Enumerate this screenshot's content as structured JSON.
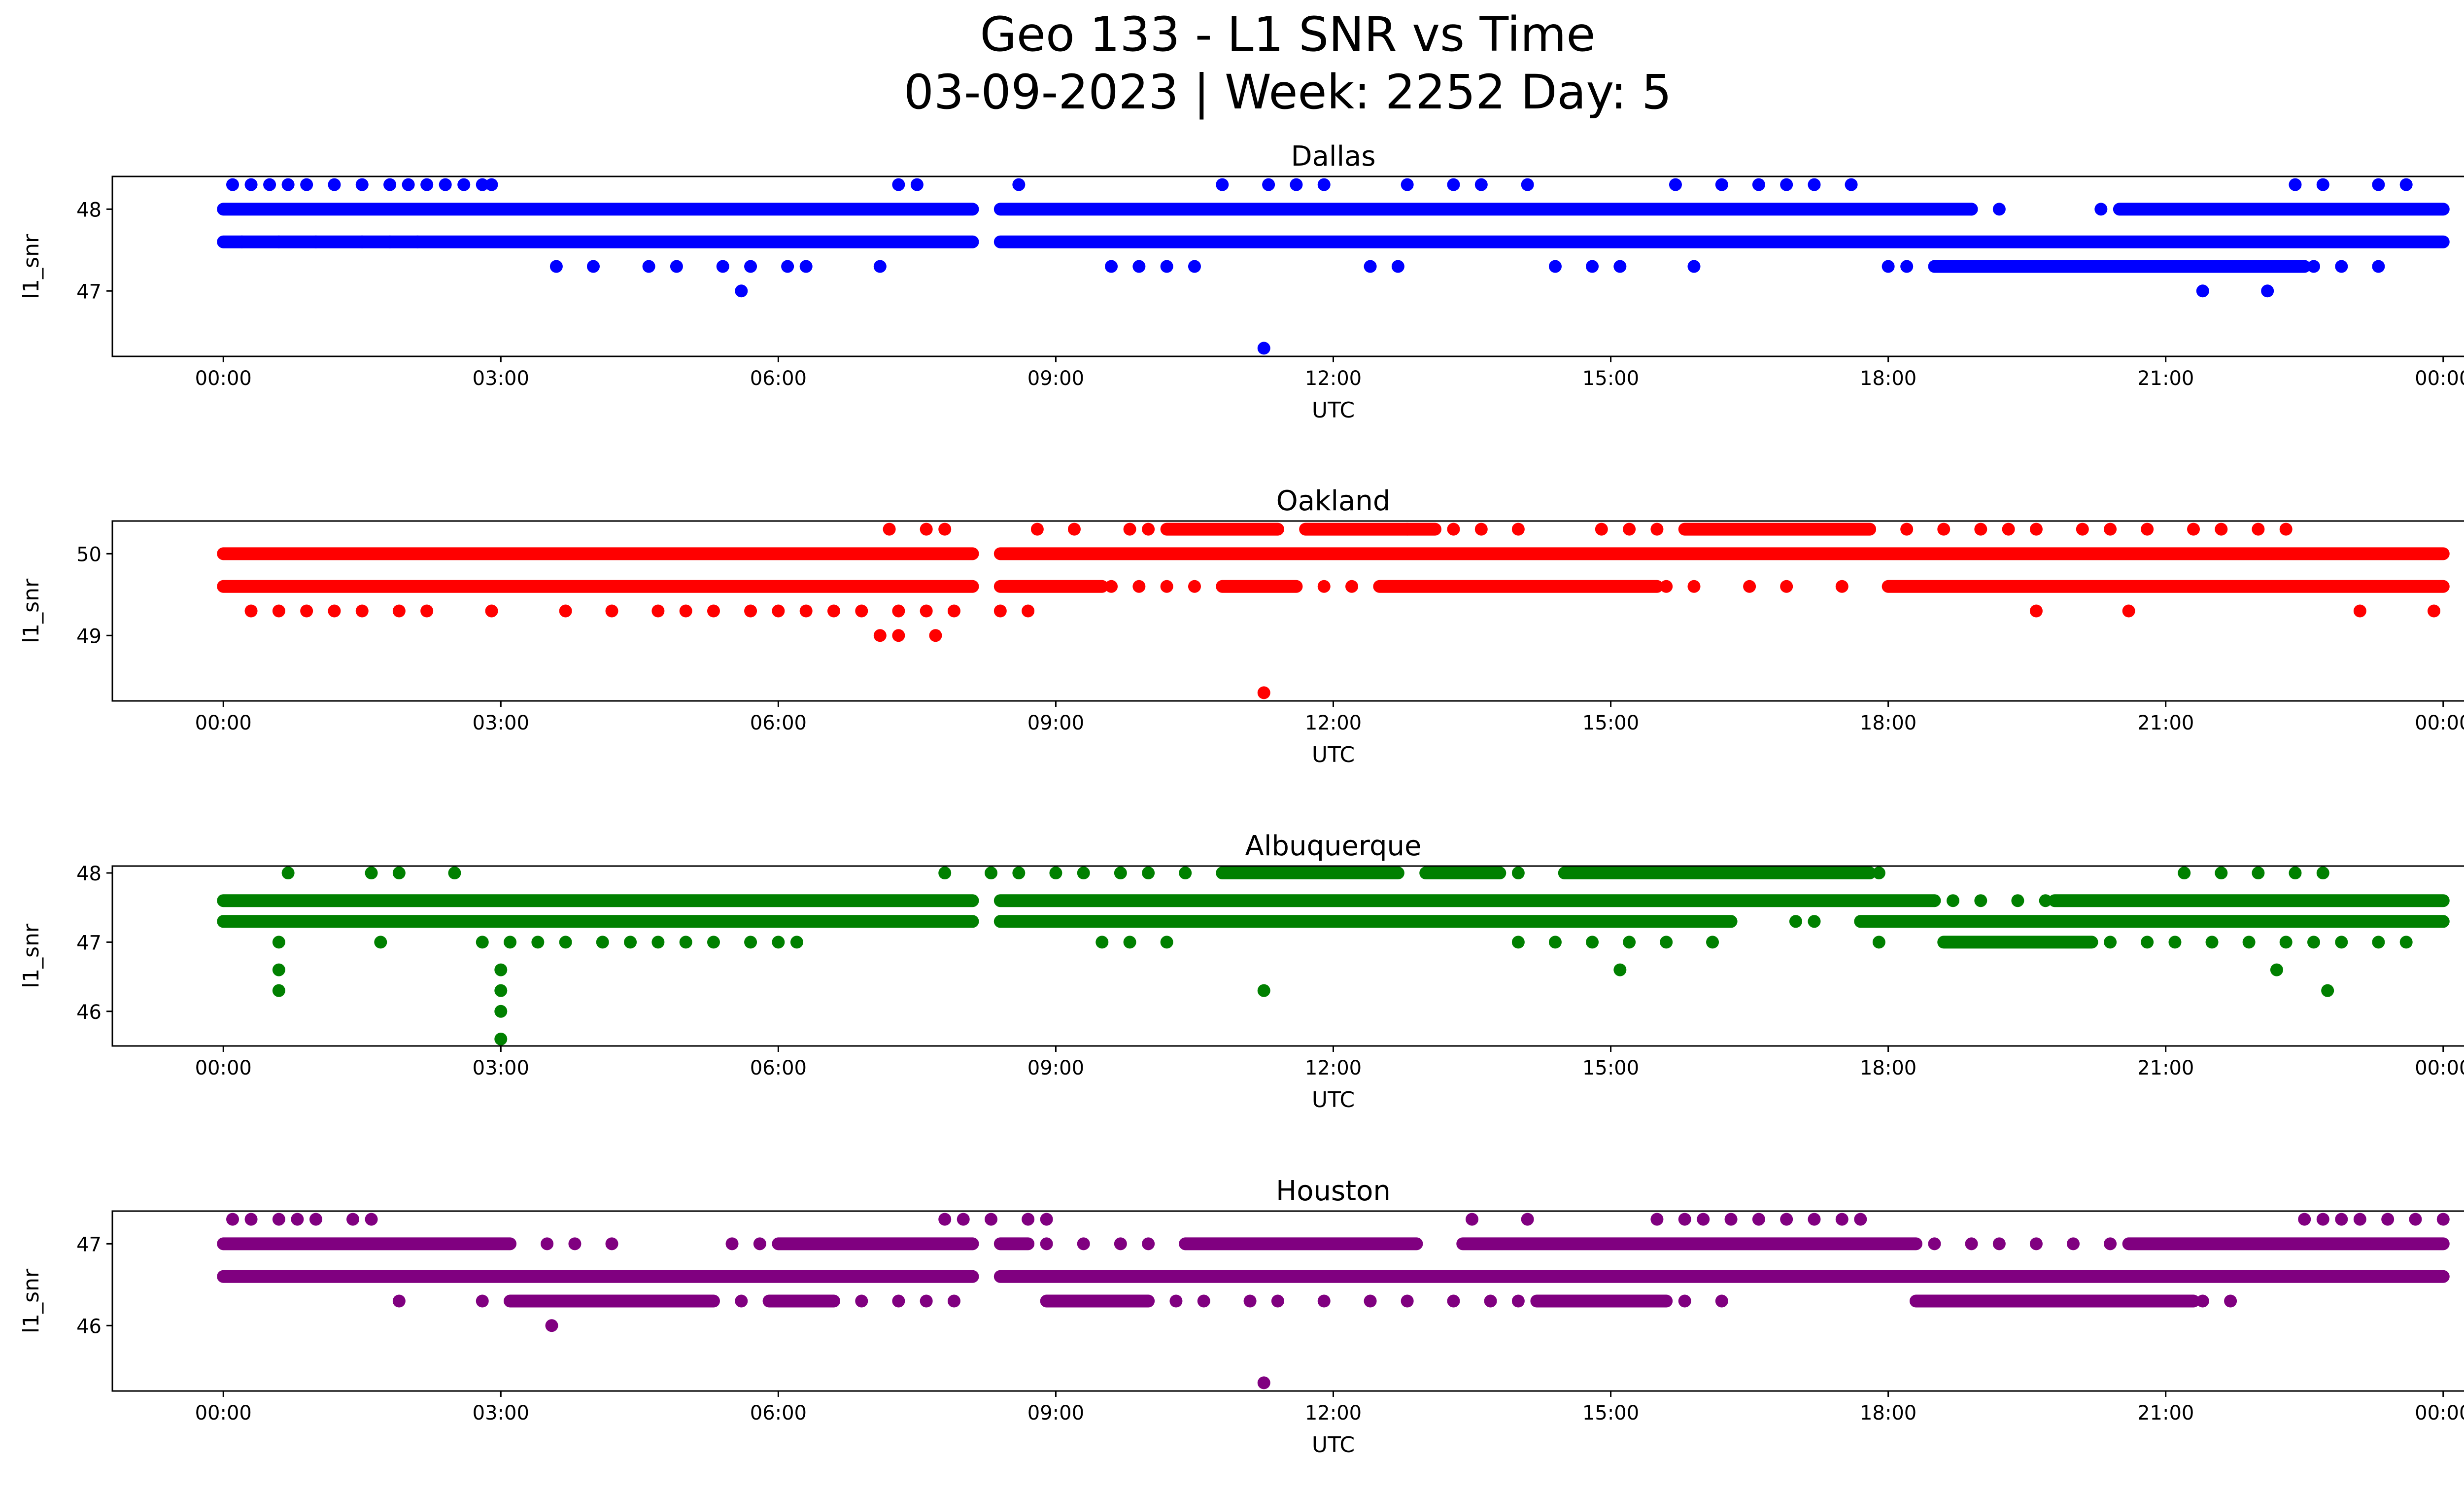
{
  "title_line1": "Geo 133 - L1 SNR vs Time",
  "title_line2": "03-09-2023 | Week: 2252 Day: 5",
  "chart_data": [
    {
      "type": "scatter",
      "title": "Dallas",
      "xlabel": "UTC",
      "ylabel": "l1_snr",
      "color": "#0000ff",
      "x_ticks": [
        "00:00",
        "03:00",
        "06:00",
        "09:00",
        "12:00",
        "15:00",
        "18:00",
        "21:00",
        "00:00"
      ],
      "xlim_hours": [
        -1.2,
        25.2
      ],
      "ylim": [
        46.2,
        48.4
      ],
      "y_ticks": [
        47,
        48
      ],
      "dense_bands": [
        {
          "y": 48.0,
          "segments": [
            [
              0.0,
              8.1
            ],
            [
              8.4,
              18.9
            ],
            [
              20.5,
              24.0
            ]
          ]
        },
        {
          "y": 47.6,
          "segments": [
            [
              0.0,
              8.1
            ],
            [
              8.4,
              24.0
            ]
          ]
        },
        {
          "y": 47.3,
          "segments": [
            [
              18.5,
              22.5
            ]
          ]
        }
      ],
      "sparse_levels": [
        {
          "y": 48.3,
          "hours": [
            0.1,
            0.3,
            0.5,
            0.7,
            0.9,
            1.2,
            1.5,
            1.8,
            2.0,
            2.2,
            2.4,
            2.6,
            2.8,
            2.9,
            7.3,
            7.5,
            8.6,
            10.8,
            11.3,
            11.6,
            11.9,
            12.8,
            13.3,
            13.6,
            14.1,
            15.7,
            16.2,
            16.6,
            16.9,
            17.2,
            17.6,
            22.4,
            22.7,
            23.3,
            23.6
          ]
        },
        {
          "y": 47.6,
          "hours": [
            0.2,
            0.6,
            1.0,
            1.5,
            1.8,
            2.1
          ]
        },
        {
          "y": 47.3,
          "hours": [
            3.6,
            4.0,
            4.6,
            4.9,
            5.4,
            5.7,
            6.1,
            6.3,
            7.1,
            9.6,
            9.9,
            10.2,
            10.5,
            12.4,
            12.7,
            14.4,
            14.8,
            15.1,
            15.9,
            18.0,
            18.2,
            22.6,
            22.9,
            23.3
          ]
        },
        {
          "y": 48.0,
          "hours": [
            18.9,
            19.2,
            20.3
          ]
        },
        {
          "y": 47.0,
          "hours": [
            5.6,
            21.4,
            22.1
          ]
        },
        {
          "y": 46.3,
          "hours": [
            11.25
          ]
        }
      ]
    },
    {
      "type": "scatter",
      "title": "Oakland",
      "xlabel": "UTC",
      "ylabel": "l1_snr",
      "color": "#ff0000",
      "x_ticks": [
        "00:00",
        "03:00",
        "06:00",
        "09:00",
        "12:00",
        "15:00",
        "18:00",
        "21:00",
        "00:00"
      ],
      "xlim_hours": [
        -1.2,
        25.2
      ],
      "ylim": [
        48.2,
        50.4
      ],
      "y_ticks": [
        49,
        50
      ],
      "dense_bands": [
        {
          "y": 50.0,
          "segments": [
            [
              0.0,
              8.1
            ],
            [
              8.4,
              24.0
            ]
          ]
        },
        {
          "y": 49.6,
          "segments": [
            [
              0.0,
              8.1
            ],
            [
              8.4,
              9.5
            ],
            [
              10.8,
              11.6
            ],
            [
              12.5,
              15.5
            ],
            [
              18.0,
              24.0
            ]
          ]
        },
        {
          "y": 50.3,
          "segments": [
            [
              10.2,
              11.4
            ],
            [
              11.7,
              13.1
            ],
            [
              15.8,
              17.8
            ]
          ]
        }
      ],
      "sparse_levels": [
        {
          "y": 50.3,
          "hours": [
            7.2,
            7.6,
            7.8,
            8.8,
            9.2,
            9.8,
            10.0,
            12.8,
            13.3,
            13.6,
            14.0,
            14.9,
            15.2,
            15.5,
            18.2,
            18.6,
            19.0,
            19.3,
            19.6,
            20.1,
            20.4,
            20.8,
            21.3,
            21.6,
            22.0,
            22.3
          ]
        },
        {
          "y": 49.6,
          "hours": [
            9.6,
            9.9,
            10.2,
            10.5,
            11.9,
            12.2,
            15.6,
            15.9,
            16.5,
            16.9,
            17.5
          ]
        },
        {
          "y": 49.3,
          "hours": [
            0.3,
            0.6,
            0.9,
            1.2,
            1.5,
            1.9,
            2.2,
            2.9,
            3.7,
            4.2,
            4.7,
            5.0,
            5.3,
            5.7,
            6.0,
            6.3,
            6.6,
            6.9,
            7.3,
            7.6,
            7.9,
            8.4,
            8.7,
            19.6,
            20.6,
            23.1,
            23.9
          ]
        },
        {
          "y": 49.0,
          "hours": [
            7.1,
            7.3,
            7.7
          ]
        },
        {
          "y": 48.3,
          "hours": [
            11.25
          ]
        }
      ]
    },
    {
      "type": "scatter",
      "title": "Albuquerque",
      "xlabel": "UTC",
      "ylabel": "l1_snr",
      "color": "#008000",
      "x_ticks": [
        "00:00",
        "03:00",
        "06:00",
        "09:00",
        "12:00",
        "15:00",
        "18:00",
        "21:00",
        "00:00"
      ],
      "xlim_hours": [
        -1.2,
        25.2
      ],
      "ylim": [
        45.5,
        48.1
      ],
      "y_ticks": [
        46,
        47,
        48
      ],
      "dense_bands": [
        {
          "y": 47.6,
          "segments": [
            [
              0.0,
              8.1
            ],
            [
              8.4,
              18.5
            ],
            [
              19.8,
              24.0
            ]
          ]
        },
        {
          "y": 47.3,
          "segments": [
            [
              0.0,
              8.1
            ],
            [
              8.4,
              16.3
            ],
            [
              17.7,
              24.0
            ]
          ]
        },
        {
          "y": 48.0,
          "segments": [
            [
              10.8,
              12.7
            ],
            [
              13.0,
              13.8
            ],
            [
              14.5,
              17.8
            ]
          ]
        },
        {
          "y": 47.0,
          "segments": [
            [
              18.6,
              20.2
            ]
          ]
        }
      ],
      "sparse_levels": [
        {
          "y": 48.0,
          "hours": [
            0.7,
            1.6,
            1.9,
            2.5,
            7.8,
            8.3,
            8.6,
            9.0,
            9.3,
            9.7,
            10.0,
            10.4,
            14.0,
            17.9,
            21.2,
            21.6,
            22.0,
            22.4,
            22.7
          ]
        },
        {
          "y": 47.6,
          "hours": [
            18.7,
            19.0,
            19.4,
            19.7
          ]
        },
        {
          "y": 47.3,
          "hours": [
            17.0,
            17.2
          ]
        },
        {
          "y": 47.0,
          "hours": [
            0.6,
            1.7,
            2.8,
            3.1,
            3.4,
            3.7,
            4.1,
            4.4,
            4.7,
            5.0,
            5.3,
            5.7,
            6.0,
            6.2,
            9.5,
            9.8,
            10.2,
            14.0,
            14.4,
            14.8,
            15.2,
            15.6,
            16.1,
            17.9,
            20.4,
            20.8,
            21.1,
            21.5,
            21.9,
            22.3,
            22.6,
            22.9,
            23.3,
            23.6
          ]
        },
        {
          "y": 46.6,
          "hours": [
            0.6,
            3.0,
            15.1,
            22.2
          ]
        },
        {
          "y": 46.3,
          "hours": [
            0.6,
            3.0,
            11.25,
            22.75
          ]
        },
        {
          "y": 46.0,
          "hours": [
            3.0
          ]
        },
        {
          "y": 45.6,
          "hours": [
            3.0
          ]
        }
      ]
    },
    {
      "type": "scatter",
      "title": "Houston",
      "xlabel": "UTC",
      "ylabel": "l1_snr",
      "color": "#800080",
      "x_ticks": [
        "00:00",
        "03:00",
        "06:00",
        "09:00",
        "12:00",
        "15:00",
        "18:00",
        "21:00",
        "00:00"
      ],
      "xlim_hours": [
        -1.2,
        25.2
      ],
      "ylim": [
        45.2,
        47.4
      ],
      "y_ticks": [
        46,
        47
      ],
      "dense_bands": [
        {
          "y": 47.0,
          "segments": [
            [
              0.0,
              3.1
            ],
            [
              6.0,
              8.1
            ],
            [
              8.4,
              8.7
            ],
            [
              10.4,
              12.9
            ],
            [
              13.4,
              18.3
            ],
            [
              20.6,
              24.0
            ]
          ]
        },
        {
          "y": 46.6,
          "segments": [
            [
              0.0,
              8.1
            ],
            [
              8.4,
              24.0
            ]
          ]
        },
        {
          "y": 46.3,
          "segments": [
            [
              3.1,
              5.3
            ],
            [
              5.9,
              6.6
            ],
            [
              8.9,
              10.0
            ],
            [
              14.2,
              15.6
            ],
            [
              18.3,
              21.3
            ]
          ]
        }
      ],
      "sparse_levels": [
        {
          "y": 47.3,
          "hours": [
            0.1,
            0.3,
            0.6,
            0.8,
            1.0,
            1.4,
            1.6,
            7.8,
            8.0,
            8.3,
            8.7,
            8.9,
            13.5,
            14.1,
            15.5,
            15.8,
            16.0,
            16.3,
            16.6,
            16.9,
            17.2,
            17.5,
            17.7,
            22.5,
            22.7,
            22.9,
            23.1,
            23.4,
            23.7,
            24.0
          ]
        },
        {
          "y": 47.0,
          "hours": [
            3.5,
            3.8,
            4.2,
            5.5,
            5.8,
            8.9,
            9.3,
            9.7,
            10.0,
            18.5,
            18.9,
            19.2,
            19.6,
            20.0,
            20.4
          ]
        },
        {
          "y": 46.3,
          "hours": [
            1.9,
            2.8,
            5.6,
            6.9,
            7.3,
            7.6,
            7.9,
            10.3,
            10.6,
            11.1,
            11.4,
            11.9,
            12.4,
            12.8,
            13.3,
            13.7,
            14.0,
            15.8,
            16.2,
            21.4,
            21.7
          ]
        },
        {
          "y": 46.0,
          "hours": [
            3.55
          ]
        },
        {
          "y": 45.3,
          "hours": [
            11.25
          ]
        }
      ]
    }
  ]
}
